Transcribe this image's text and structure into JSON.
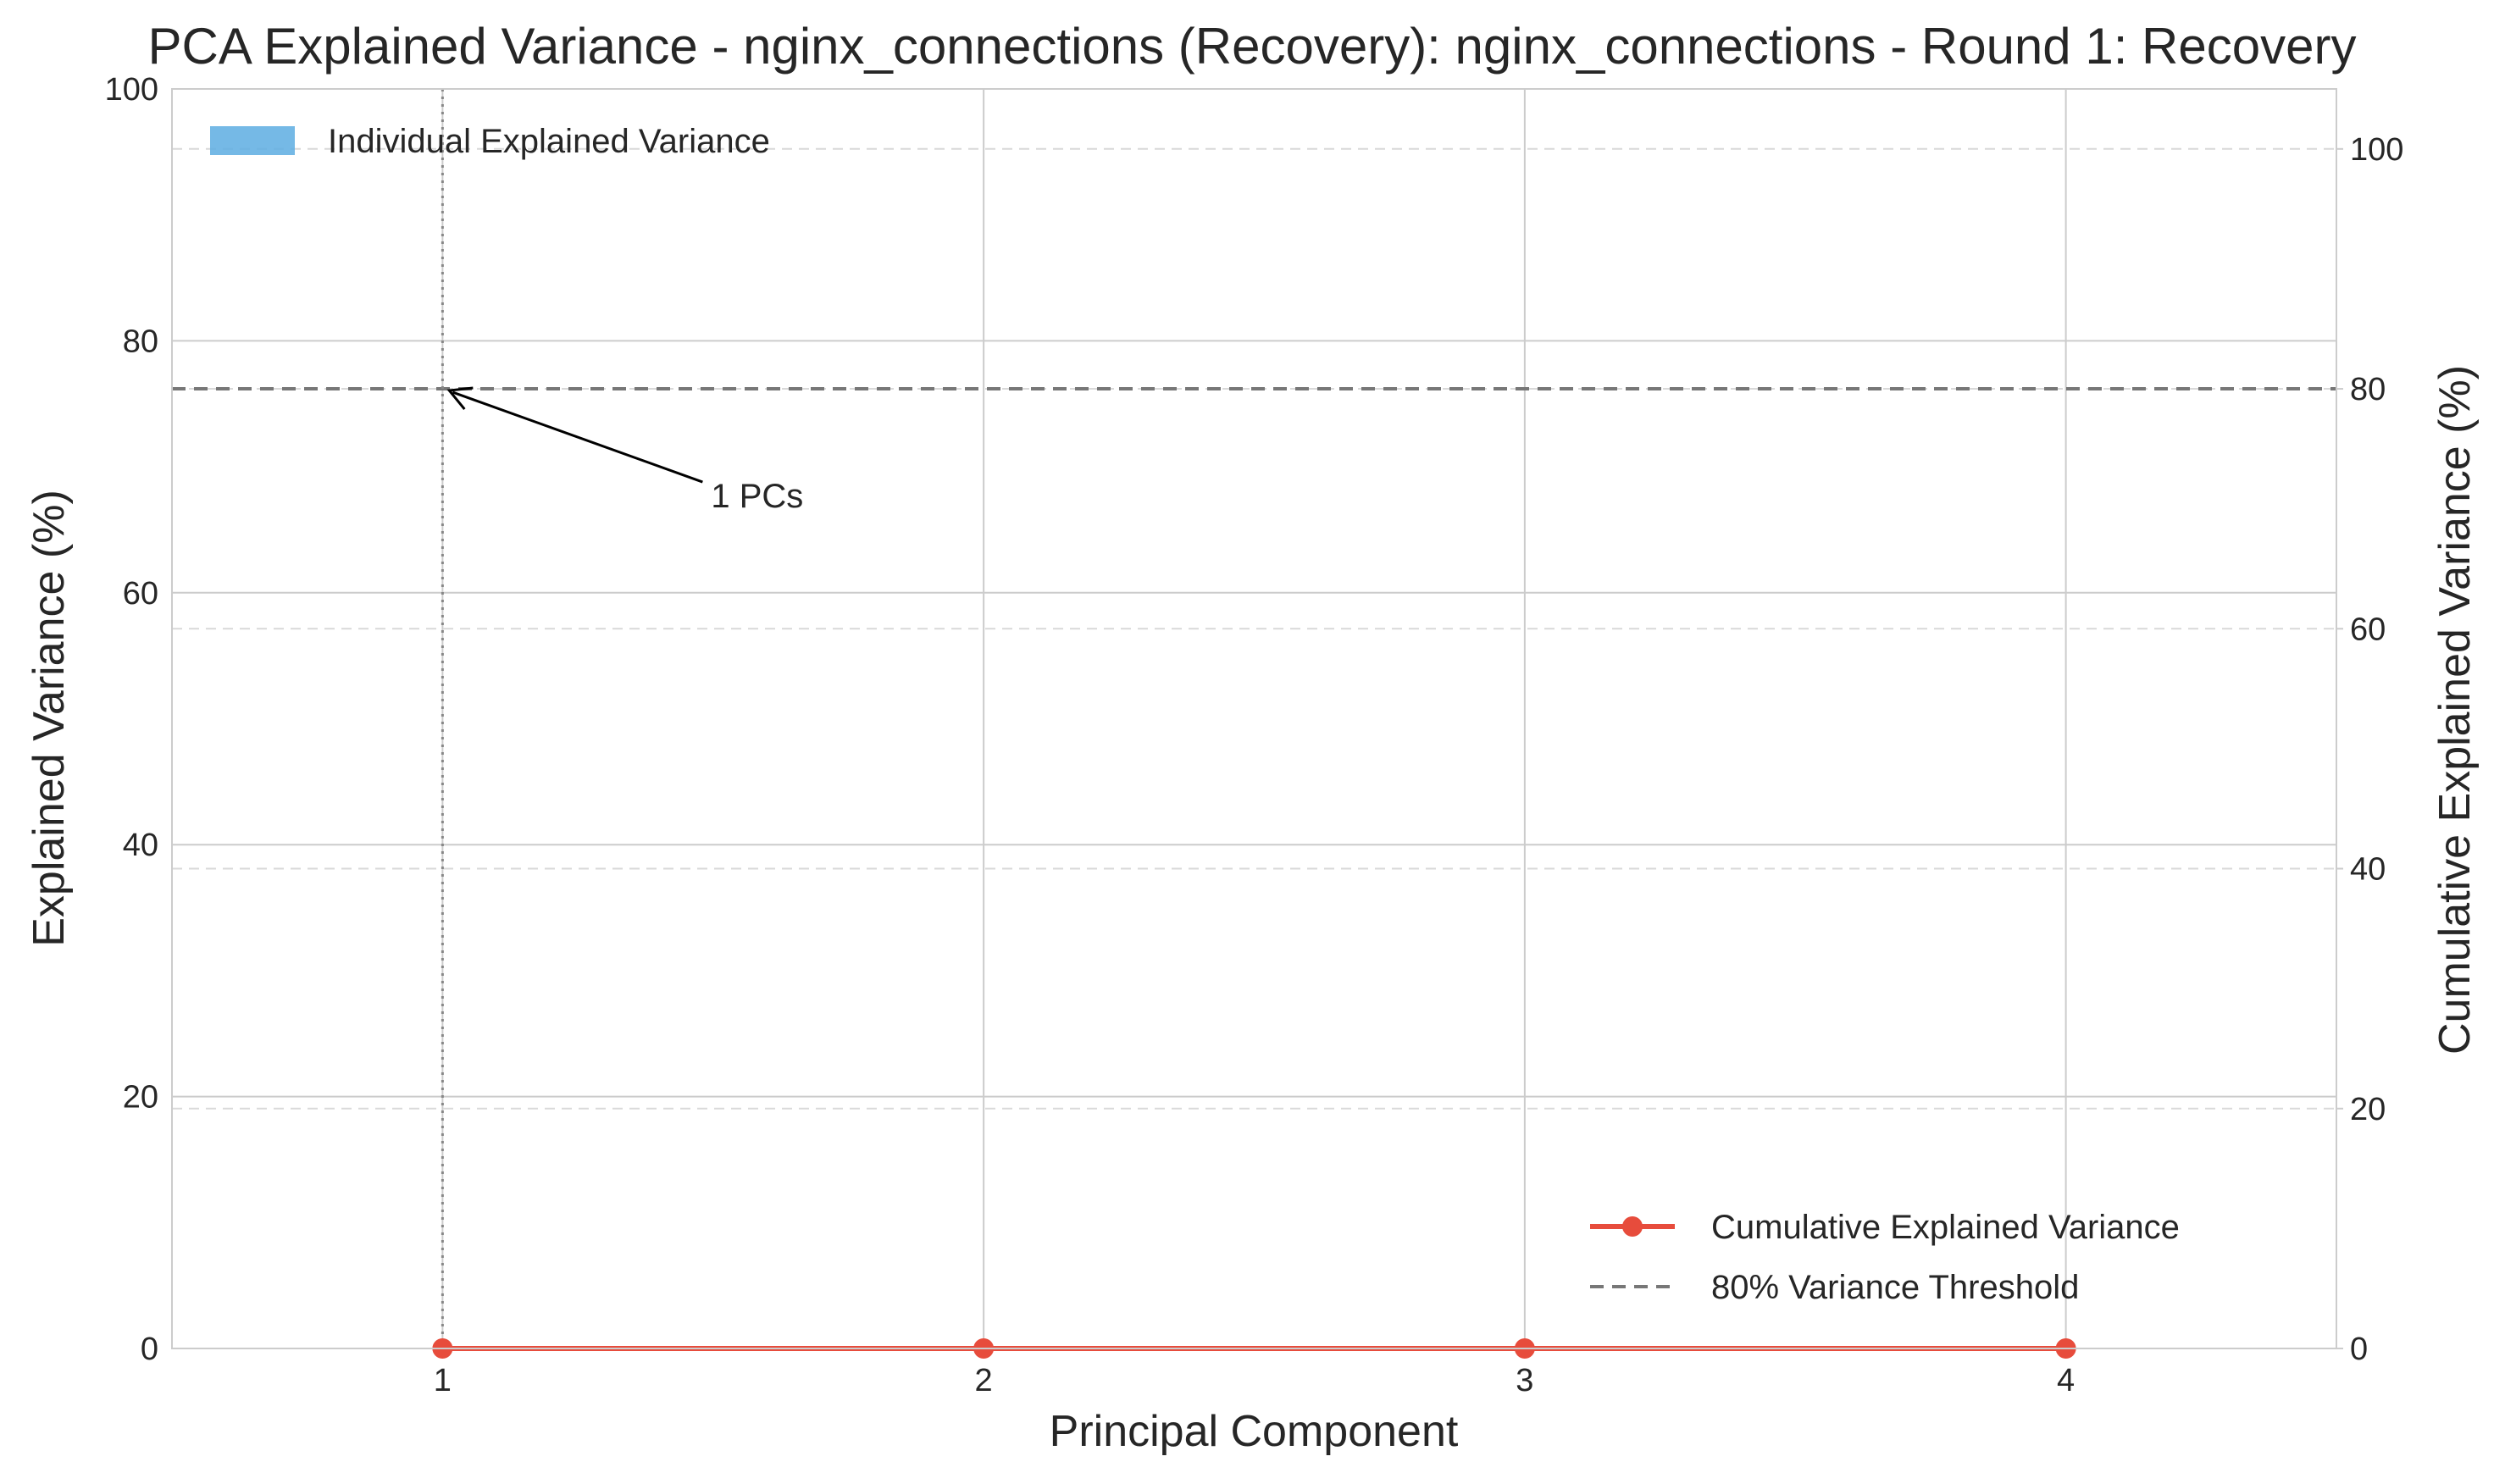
{
  "chart_data": {
    "type": "bar",
    "title": "PCA Explained Variance - nginx_connections (Recovery): nginx_connections - Round 1: Recovery",
    "xlabel": "Principal Component",
    "ylabel": "Explained Variance (%)",
    "ylabel_right": "Cumulative Explained Variance (%)",
    "categories": [
      "1",
      "2",
      "3",
      "4"
    ],
    "x_ticks": [
      "1",
      "2",
      "3",
      "4"
    ],
    "xlim": [
      0.5,
      4.5
    ],
    "ylim": [
      0,
      100
    ],
    "ylim_right": [
      0,
      105
    ],
    "y_ticks": [
      "0",
      "20",
      "40",
      "60",
      "80",
      "100"
    ],
    "y_ticks_right": [
      "0",
      "20",
      "40",
      "60",
      "80",
      "100"
    ],
    "grid": true,
    "series": [
      {
        "name": "Individual Explained Variance",
        "type": "bar",
        "axis": "left",
        "color": "#5dade2",
        "values": [
          0,
          0,
          0,
          0
        ]
      },
      {
        "name": "Cumulative Explained Variance",
        "type": "line",
        "axis": "right",
        "color": "#e74c3c",
        "marker": "circle",
        "values": [
          0,
          0,
          0,
          0
        ]
      }
    ],
    "threshold": {
      "name": "80% Variance Threshold",
      "value": 80,
      "axis": "right",
      "color": "#777777",
      "style": "dashed"
    },
    "vline": {
      "x": 1,
      "style": "dotted",
      "color": "#888888"
    },
    "annotation": {
      "text": "1 PCs",
      "x": 1,
      "y": 80,
      "axis": "right"
    },
    "legend_upper": {
      "placement": "top-left",
      "entries": [
        "Individual Explained Variance"
      ]
    },
    "legend_lower": {
      "placement": "bottom-right",
      "entries": [
        "Cumulative Explained Variance",
        "80% Variance Threshold"
      ]
    }
  }
}
